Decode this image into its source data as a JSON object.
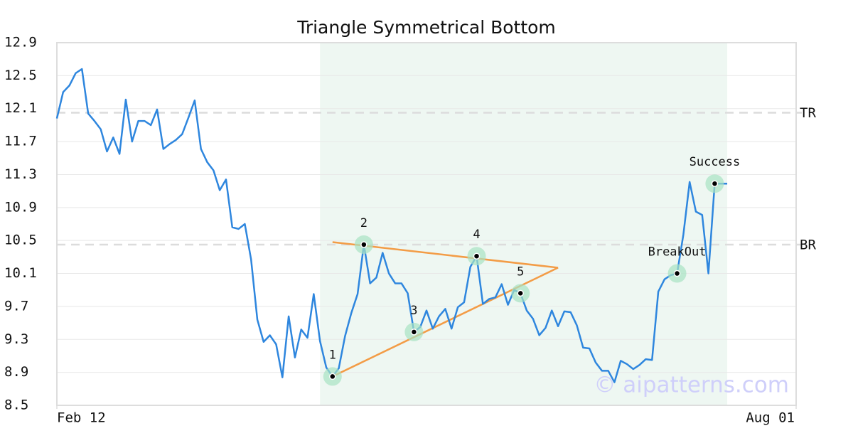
{
  "chart_data": {
    "type": "line",
    "title": "Triangle Symmetrical Bottom",
    "watermark": "© aipatterns.com",
    "x": [
      0,
      1,
      2,
      3,
      4,
      5,
      6,
      7,
      8,
      9,
      10,
      11,
      12,
      13,
      14,
      15,
      16,
      17,
      18,
      19,
      20,
      21,
      22,
      23,
      24,
      25,
      26,
      27,
      28,
      29,
      30,
      31,
      32,
      33,
      34,
      35,
      36,
      37,
      38,
      39,
      40,
      41,
      42,
      43,
      44,
      45,
      46,
      47,
      48,
      49,
      50,
      51,
      52,
      53,
      54,
      55,
      56,
      57,
      58,
      59,
      60,
      61,
      62,
      63,
      64,
      65,
      66,
      67,
      68,
      69,
      70,
      71,
      72,
      73,
      74,
      75,
      76,
      77,
      78,
      79,
      80,
      81,
      82,
      83,
      84,
      85,
      86,
      87,
      88,
      89,
      90,
      91,
      92,
      93,
      94,
      95,
      96,
      97,
      98,
      99,
      100,
      101,
      102,
      103,
      104,
      105,
      106,
      107
    ],
    "values": [
      11.98,
      12.3,
      12.38,
      12.53,
      12.58,
      12.04,
      11.95,
      11.85,
      11.58,
      11.75,
      11.55,
      12.21,
      11.7,
      11.95,
      11.95,
      11.9,
      12.09,
      11.61,
      11.67,
      11.72,
      11.79,
      11.99,
      12.2,
      11.61,
      11.45,
      11.35,
      11.11,
      11.24,
      10.66,
      10.64,
      10.7,
      10.27,
      9.54,
      9.27,
      9.35,
      9.24,
      8.84,
      9.58,
      9.08,
      9.42,
      9.32,
      9.85,
      9.28,
      8.96,
      8.85,
      8.95,
      9.34,
      9.62,
      9.85,
      10.45,
      9.98,
      10.05,
      10.35,
      10.1,
      9.98,
      9.98,
      9.86,
      9.39,
      9.45,
      9.65,
      9.43,
      9.58,
      9.67,
      9.43,
      9.69,
      9.75,
      10.18,
      10.31,
      9.73,
      9.79,
      9.81,
      9.97,
      9.72,
      9.9,
      9.86,
      9.65,
      9.55,
      9.35,
      9.44,
      9.65,
      9.46,
      9.64,
      9.63,
      9.47,
      9.2,
      9.19,
      9.02,
      8.92,
      8.92,
      8.78,
      9.04,
      9.0,
      8.94,
      8.99,
      9.06,
      9.05,
      9.88,
      10.03,
      10.08,
      10.1,
      10.57,
      11.21,
      10.85,
      10.81,
      10.1,
      11.19,
      11.19,
      11.19
    ],
    "color": "#2e86de",
    "xlim": [
      0,
      118
    ],
    "xticks": [
      {
        "value": 0,
        "label": "Feb 12"
      },
      {
        "value": 118,
        "label": "Aug 01"
      }
    ],
    "ylim": [
      8.5,
      12.9
    ],
    "yticks": [
      8.5,
      8.9,
      9.3,
      9.7,
      10.1,
      10.5,
      10.9,
      11.3,
      11.7,
      12.1,
      12.5,
      12.9
    ],
    "grid": true,
    "highlight": {
      "range": [
        42,
        107
      ],
      "color": "#eef7f2"
    },
    "reference_lines": [
      {
        "label": "TR",
        "value": 12.05
      },
      {
        "label": "BR",
        "value": 10.45
      }
    ],
    "trendlines": {
      "color": "#f39c46",
      "lines": [
        {
          "x": [
            44,
            80
          ],
          "y": [
            10.48,
            10.17
          ]
        },
        {
          "x": [
            44,
            80
          ],
          "y": [
            8.85,
            10.17
          ]
        }
      ]
    },
    "annotations": [
      {
        "text": "1",
        "x": 44,
        "y": 8.85
      },
      {
        "text": "2",
        "x": 49,
        "y": 10.45
      },
      {
        "text": "3",
        "x": 57,
        "y": 9.39
      },
      {
        "text": "4",
        "x": 67,
        "y": 10.31
      },
      {
        "text": "5",
        "x": 74,
        "y": 9.86
      },
      {
        "text": "BreakOut",
        "x": 99,
        "y": 10.1
      },
      {
        "text": "Success",
        "x": 105,
        "y": 11.19
      }
    ]
  }
}
